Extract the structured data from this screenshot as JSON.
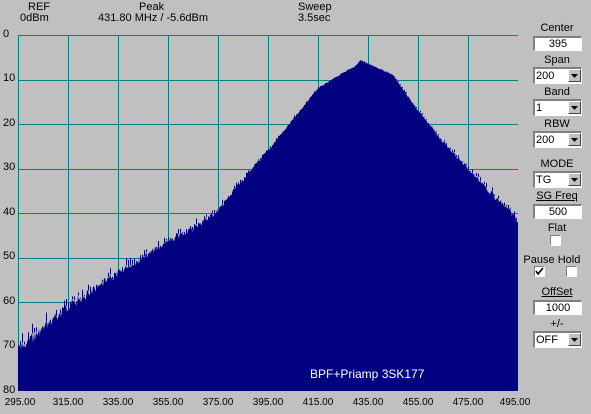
{
  "header": {
    "ref_label": "REF",
    "ref_value": "0dBm",
    "peak_label": "Peak",
    "peak_value": "431.80 MHz / -5.6dBm",
    "sweep_label": "Sweep",
    "sweep_value": "3.5sec"
  },
  "chart_data": {
    "type": "area",
    "annotation": "BPF+Priamp 3SK177",
    "x_ticks": [
      "295.00",
      "315.00",
      "335.00",
      "355.00",
      "375.00",
      "395.00",
      "415.00",
      "435.00",
      "455.00",
      "475.00",
      "495.00"
    ],
    "y_ticks": [
      "0",
      "10",
      "20",
      "30",
      "40",
      "50",
      "60",
      "70",
      "80"
    ],
    "xlim": [
      295,
      495
    ],
    "ylim": [
      0,
      80
    ],
    "y_inverted": true,
    "grid": true,
    "series": [
      {
        "x": [
          295,
          305,
          315,
          325,
          335,
          345,
          355,
          365,
          375,
          385,
          395,
          405,
          415,
          425,
          430,
          432,
          435,
          445,
          455,
          465,
          475,
          485,
          495
        ],
        "y": [
          71,
          66,
          61,
          57.5,
          53.5,
          50,
          46.5,
          43.5,
          39.5,
          32.5,
          26,
          19,
          12,
          8.5,
          7,
          5.6,
          6.5,
          9,
          17,
          24,
          30,
          36,
          41.5
        ]
      }
    ],
    "colors": {
      "background": "#c0c0c0",
      "fill": "#000080",
      "grid": "#008080"
    }
  },
  "sidebar": {
    "center_label": "Center",
    "center_value": "395",
    "span_label": "Span",
    "span_value": "200",
    "band_label": "Band",
    "band_value": "1",
    "rbw_label": "RBW",
    "rbw_value": "200",
    "mode_label": "MODE",
    "mode_value": "TG",
    "sgfreq_label": "SG Freq",
    "sgfreq_value": "500",
    "flat_label": "Flat",
    "flat_checked": false,
    "pause_label": "Pause",
    "pause_checked": true,
    "hold_label": "Hold",
    "hold_checked": false,
    "offset_label": "OffSet",
    "offset_value": "1000",
    "pm_label": "+/-",
    "pm_value": "OFF"
  }
}
